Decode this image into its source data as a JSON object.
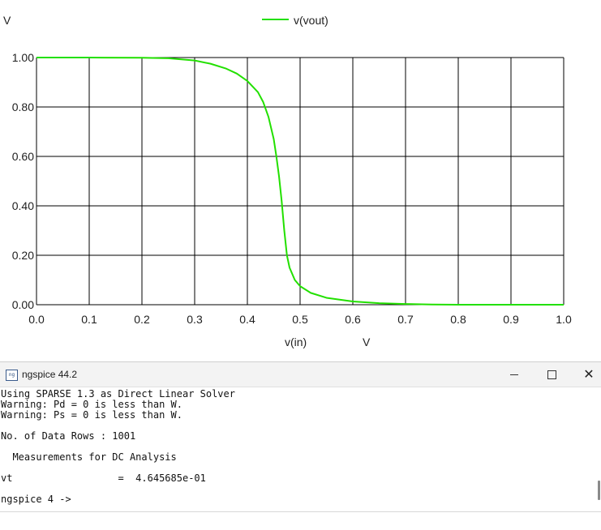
{
  "chart_data": {
    "type": "line",
    "title": "",
    "ylabel": "V",
    "xlabel": "v(in)",
    "xunit": "V",
    "xlim": [
      0.0,
      1.0
    ],
    "ylim": [
      0.0,
      1.0
    ],
    "grid": true,
    "legend_placement": "top-center",
    "x_ticks": [
      "0.0",
      "0.1",
      "0.2",
      "0.3",
      "0.4",
      "0.5",
      "0.6",
      "0.7",
      "0.8",
      "0.9",
      "1.0"
    ],
    "y_ticks": [
      "0.00",
      "0.20",
      "0.40",
      "0.60",
      "0.80",
      "1.00"
    ],
    "series": [
      {
        "name": "v(vout)",
        "color": "#22e000",
        "x": [
          0.0,
          0.1,
          0.2,
          0.25,
          0.3,
          0.33,
          0.36,
          0.38,
          0.4,
          0.42,
          0.43,
          0.44,
          0.45,
          0.455,
          0.46,
          0.465,
          0.47,
          0.475,
          0.48,
          0.49,
          0.5,
          0.52,
          0.55,
          0.6,
          0.65,
          0.7,
          0.75,
          0.8,
          0.9,
          1.0
        ],
        "y": [
          1.0,
          1.0,
          0.999,
          0.997,
          0.988,
          0.975,
          0.955,
          0.935,
          0.905,
          0.86,
          0.82,
          0.76,
          0.67,
          0.6,
          0.52,
          0.42,
          0.3,
          0.2,
          0.15,
          0.1,
          0.075,
          0.048,
          0.028,
          0.013,
          0.006,
          0.003,
          0.001,
          0.0,
          0.0,
          0.0
        ]
      }
    ]
  },
  "window": {
    "title": "ngspice 44.2",
    "icon": "ngspice-app-icon",
    "icon_text": "ng",
    "minimize_icon": "minimize-icon",
    "maximize_icon": "maximize-icon",
    "close_icon": "close-icon",
    "close_glyph": "✕"
  },
  "console": {
    "lines": [
      "Using SPARSE 1.3 as Direct Linear Solver",
      "Warning: Pd = 0 is less than W.",
      "Warning: Ps = 0 is less than W.",
      "",
      "No. of Data Rows : 1001",
      "",
      "  Measurements for DC Analysis",
      "",
      "vt                  =  4.645685e-01",
      "",
      "ngspice 4 ->"
    ]
  }
}
